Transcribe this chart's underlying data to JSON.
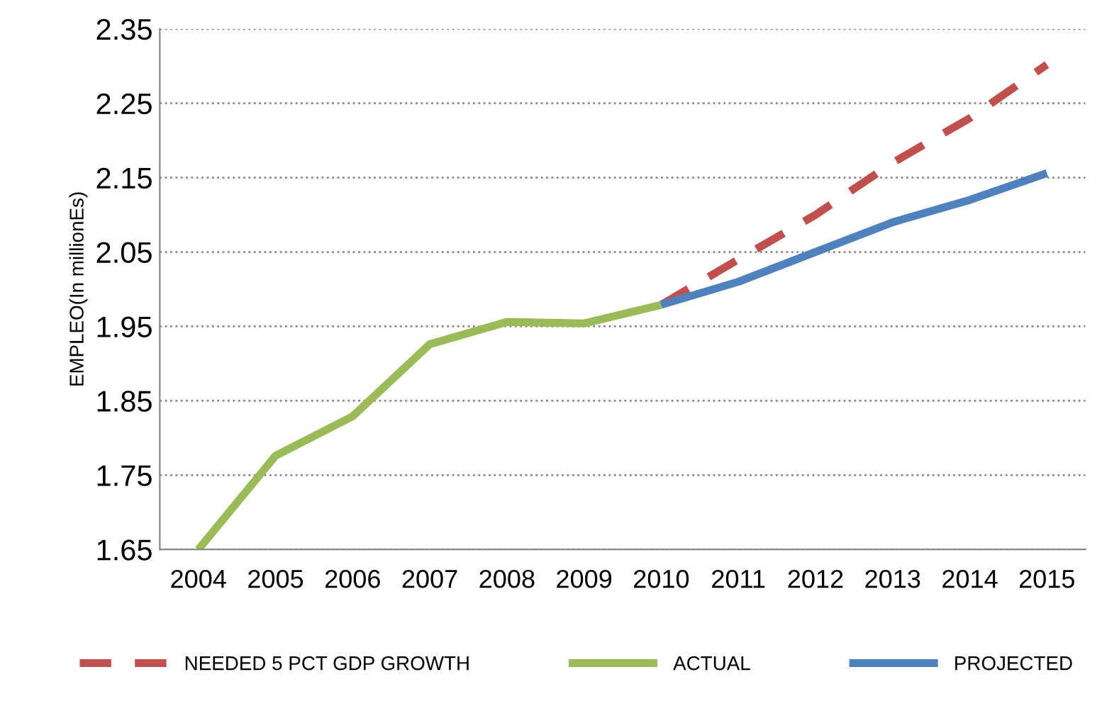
{
  "chart_data": {
    "type": "line",
    "ylabel": "EMPLEO(In millionEs)",
    "categories": [
      "2004",
      "2005",
      "2006",
      "2007",
      "2008",
      "2009",
      "2010",
      "2011",
      "2012",
      "2013",
      "2014",
      "2015"
    ],
    "series": [
      {
        "name": "NEEDED 5 PCT GDP GROWTH",
        "color": "#c0504d",
        "line_style": "dashed",
        "values": [
          null,
          null,
          null,
          null,
          null,
          null,
          1.979,
          2.04,
          2.1,
          2.17,
          2.23,
          2.302
        ]
      },
      {
        "name": "ACTUAL",
        "color": "#9bbb59",
        "line_style": "solid",
        "values": [
          1.65,
          1.776,
          1.829,
          1.926,
          1.956,
          1.954,
          1.979,
          null,
          null,
          null,
          null,
          null
        ]
      },
      {
        "name": "PROJECTED",
        "color": "#4f81bd",
        "line_style": "solid",
        "values": [
          null,
          null,
          null,
          null,
          null,
          null,
          1.979,
          2.01,
          2.05,
          2.09,
          2.12,
          2.156
        ]
      }
    ],
    "ylim": [
      1.65,
      2.35
    ],
    "yticks": [
      1.65,
      1.75,
      1.85,
      1.95,
      2.05,
      2.15,
      2.25,
      2.35
    ],
    "grid": "y",
    "legend": "bottom",
    "marker": "none"
  }
}
